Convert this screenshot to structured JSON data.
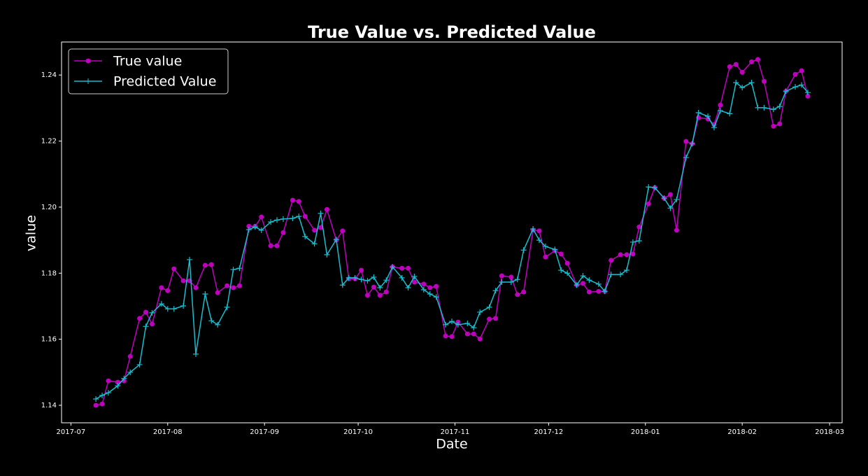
{
  "chart_data": {
    "type": "line",
    "title": "True Value vs. Predicted Value",
    "x_label": "Date",
    "y_label": "value",
    "legend": "upper left",
    "x": [
      "2017-07-09",
      "2017-07-11",
      "2017-07-13",
      "2017-07-16",
      "2017-07-18",
      "2017-07-20",
      "2017-07-23",
      "2017-07-25",
      "2017-07-27",
      "2017-07-30",
      "2017-08-01",
      "2017-08-03",
      "2017-08-06",
      "2017-08-08",
      "2017-08-10",
      "2017-08-13",
      "2017-08-15",
      "2017-08-17",
      "2017-08-20",
      "2017-08-22",
      "2017-08-24",
      "2017-08-27",
      "2017-08-29",
      "2017-08-31",
      "2017-09-03",
      "2017-09-05",
      "2017-09-07",
      "2017-09-10",
      "2017-09-12",
      "2017-09-14",
      "2017-09-17",
      "2017-09-19",
      "2017-09-21",
      "2017-09-24",
      "2017-09-26",
      "2017-09-28",
      "2017-09-30",
      "2017-10-02",
      "2017-10-04",
      "2017-10-06",
      "2017-10-08",
      "2017-10-10",
      "2017-10-12",
      "2017-10-15",
      "2017-10-17",
      "2017-10-19",
      "2017-10-22",
      "2017-10-24",
      "2017-10-26",
      "2017-10-29",
      "2017-10-31",
      "2017-11-02",
      "2017-11-05",
      "2017-11-07",
      "2017-11-09",
      "2017-11-12",
      "2017-11-14",
      "2017-11-16",
      "2017-11-19",
      "2017-11-21",
      "2017-11-23",
      "2017-11-26",
      "2017-11-28",
      "2017-11-30",
      "2017-12-03",
      "2017-12-05",
      "2017-12-07",
      "2017-12-10",
      "2017-12-12",
      "2017-12-14",
      "2017-12-17",
      "2017-12-19",
      "2017-12-21",
      "2017-12-24",
      "2017-12-26",
      "2017-12-28",
      "2017-12-30",
      "2018-01-02",
      "2018-01-04",
      "2018-01-07",
      "2018-01-09",
      "2018-01-11",
      "2018-01-14",
      "2018-01-16",
      "2018-01-18",
      "2018-01-21",
      "2018-01-23",
      "2018-01-25",
      "2018-01-28",
      "2018-01-30",
      "2018-02-01",
      "2018-02-04",
      "2018-02-06",
      "2018-02-08",
      "2018-02-11",
      "2018-02-13",
      "2018-02-15",
      "2018-02-18",
      "2018-02-20",
      "2018-02-22"
    ],
    "series": [
      {
        "name": "True value",
        "color": "#bf00bf",
        "marker": "o",
        "values": [
          1.14,
          1.1404,
          1.1474,
          1.147,
          1.1474,
          1.1548,
          1.1663,
          1.1682,
          1.1646,
          1.1756,
          1.1747,
          1.1813,
          1.1777,
          1.1777,
          1.1756,
          1.1824,
          1.1826,
          1.1741,
          1.1762,
          1.1756,
          1.1762,
          1.1942,
          1.1942,
          1.197,
          1.1883,
          1.1883,
          1.1923,
          1.2021,
          1.2017,
          1.1972,
          1.193,
          1.1938,
          1.1993,
          1.19,
          1.1928,
          1.1783,
          1.1783,
          1.1809,
          1.1733,
          1.1758,
          1.1733,
          1.1743,
          1.1819,
          1.1815,
          1.1815,
          1.1773,
          1.1767,
          1.1756,
          1.176,
          1.161,
          1.1608,
          1.1652,
          1.1616,
          1.1616,
          1.1601,
          1.1661,
          1.1663,
          1.1792,
          1.1788,
          1.1735,
          1.1743,
          1.193,
          1.1928,
          1.1849,
          1.1868,
          1.1858,
          1.183,
          1.1764,
          1.1769,
          1.1743,
          1.1745,
          1.1745,
          1.1839,
          1.1856,
          1.1856,
          1.1858,
          1.194,
          1.201,
          1.2059,
          1.2027,
          1.2038,
          1.193,
          1.2199,
          1.2192,
          1.2271,
          1.2267,
          1.225,
          1.2309,
          1.2425,
          1.2432,
          1.2408,
          1.244,
          1.2447,
          1.2381,
          1.2245,
          1.2252,
          1.2351,
          1.2402,
          1.2413,
          1.2336
        ]
      },
      {
        "name": "Predicted Value",
        "color": "#17becf",
        "marker": "+",
        "values": [
          1.1419,
          1.143,
          1.1438,
          1.1459,
          1.1481,
          1.15,
          1.1523,
          1.1639,
          1.168,
          1.1707,
          1.1692,
          1.1692,
          1.1701,
          1.1841,
          1.1555,
          1.1737,
          1.1656,
          1.1644,
          1.1697,
          1.1811,
          1.1815,
          1.1932,
          1.194,
          1.193,
          1.1955,
          1.1961,
          1.1964,
          1.1966,
          1.1972,
          1.1911,
          1.1889,
          1.1981,
          1.1856,
          1.1902,
          1.1764,
          1.1786,
          1.1786,
          1.1781,
          1.1777,
          1.1788,
          1.1756,
          1.1779,
          1.1819,
          1.1786,
          1.1756,
          1.179,
          1.175,
          1.1737,
          1.1728,
          1.1644,
          1.1654,
          1.1644,
          1.1648,
          1.1635,
          1.1682,
          1.1697,
          1.1747,
          1.1773,
          1.1773,
          1.1781,
          1.187,
          1.1934,
          1.19,
          1.1881,
          1.1872,
          1.1809,
          1.18,
          1.1764,
          1.1792,
          1.1779,
          1.1767,
          1.1745,
          1.1796,
          1.1796,
          1.1809,
          1.1894,
          1.1898,
          1.2061,
          1.2059,
          1.2027,
          1.1997,
          1.2023,
          1.215,
          1.2192,
          1.2286,
          1.2275,
          1.2241,
          1.2292,
          1.2283,
          1.2377,
          1.2362,
          1.2377,
          1.2301,
          1.2301,
          1.2296,
          1.2305,
          1.2351,
          1.2364,
          1.237,
          1.2347
        ]
      }
    ],
    "xlim": [
      "2017-06-28",
      "2018-03-05"
    ],
    "xticks": [
      {
        "value": "2017-07-01",
        "label": "2017-07"
      },
      {
        "value": "2017-08-01",
        "label": "2017-08"
      },
      {
        "value": "2017-09-01",
        "label": "2017-09"
      },
      {
        "value": "2017-10-01",
        "label": "2017-10"
      },
      {
        "value": "2017-11-01",
        "label": "2017-11"
      },
      {
        "value": "2017-12-01",
        "label": "2017-12"
      },
      {
        "value": "2018-01-01",
        "label": "2018-01"
      },
      {
        "value": "2018-02-01",
        "label": "2018-02"
      },
      {
        "value": "2018-03-01",
        "label": "2018-03"
      }
    ],
    "ylim": [
      1.1347,
      1.25
    ],
    "yticks": [
      1.14,
      1.16,
      1.18,
      {
        "value": 1.2,
        "label": "1.20"
      },
      1.22,
      1.24
    ],
    "grid": false
  }
}
